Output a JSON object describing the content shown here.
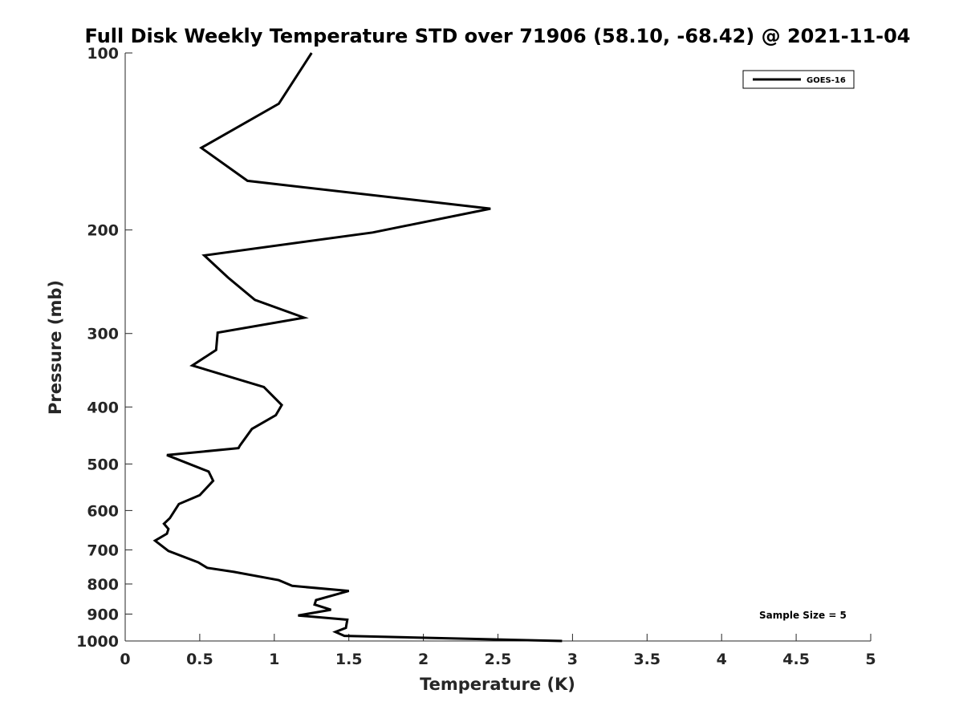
{
  "chart_data": {
    "type": "line",
    "title": "Full Disk Weekly Temperature STD over 71906 (58.10, -68.42) @ 2021-11-04",
    "xlabel": "Temperature (K)",
    "ylabel": "Pressure (mb)",
    "xlim": [
      0,
      5
    ],
    "ylim": [
      100,
      1000
    ],
    "yscale": "log",
    "y_reversed": true,
    "grid": false,
    "legend_placement": "top-right",
    "x_ticks": [
      0,
      0.5,
      1,
      1.5,
      2,
      2.5,
      3,
      3.5,
      4,
      4.5,
      5
    ],
    "x_tick_labels": [
      "0",
      "0.5",
      "1",
      "1.5",
      "2",
      "2.5",
      "3",
      "3.5",
      "4",
      "4.5",
      "5"
    ],
    "y_ticks": [
      100,
      200,
      300,
      400,
      500,
      600,
      700,
      800,
      900,
      1000
    ],
    "y_tick_labels": [
      "100",
      "200",
      "300",
      "400",
      "500",
      "600",
      "700",
      "800",
      "900",
      "1000"
    ],
    "annotation": "Sample Size = 5",
    "series": [
      {
        "name": "GOES-16",
        "color": "#000000",
        "x": [
          1.25,
          1.03,
          0.51,
          0.82,
          2.45,
          1.66,
          0.53,
          0.69,
          0.87,
          1.2,
          0.62,
          0.61,
          0.45,
          0.93,
          1.05,
          1.01,
          0.85,
          0.77,
          0.76,
          0.28,
          0.56,
          0.59,
          0.5,
          0.36,
          0.3,
          0.26,
          0.29,
          0.28,
          0.2,
          0.29,
          0.49,
          0.55,
          0.73,
          1.03,
          1.12,
          1.5,
          1.28,
          1.27,
          1.38,
          1.16,
          1.49,
          1.48,
          1.41,
          1.47,
          2.93
        ],
        "y": [
          100,
          122,
          145,
          165,
          184,
          202,
          221,
          241,
          263,
          282,
          299,
          320,
          340,
          370,
          397,
          413,
          436,
          465,
          470,
          483,
          515,
          534,
          565,
          585,
          618,
          632,
          645,
          657,
          675,
          703,
          735,
          751,
          763,
          788,
          806,
          822,
          852,
          867,
          885,
          905,
          920,
          950,
          965,
          980,
          1000
        ]
      }
    ]
  }
}
